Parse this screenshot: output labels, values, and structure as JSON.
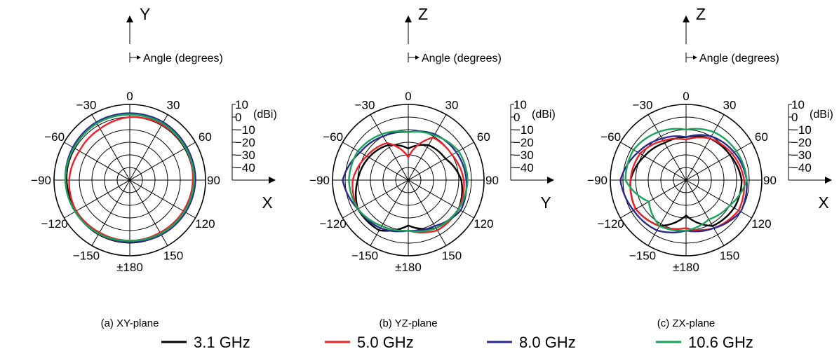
{
  "chart_data": [
    {
      "type": "polar",
      "caption": "(a) XY-plane",
      "up_axis": "Y",
      "right_axis": "X",
      "angle_note": "Angle (degrees)",
      "unit": "(dBi)",
      "angle_ticks": [
        "0",
        "30",
        "60",
        "90",
        "120",
        "150",
        "±180",
        "−150",
        "−120",
        "−90",
        "−60",
        "−30"
      ],
      "radial_ticks": [
        "10",
        "0",
        "−10",
        "−20",
        "−30",
        "−40"
      ],
      "rlim": [
        -50,
        10
      ],
      "angles_deg": [
        0,
        30,
        60,
        90,
        120,
        150,
        180,
        210,
        240,
        270,
        300,
        330
      ],
      "series": [
        {
          "name": "3.1 GHz",
          "color": "#000000",
          "gain_dbi": [
            2,
            2,
            1,
            1,
            0,
            -1,
            -2,
            -2,
            -1,
            0,
            1,
            2
          ]
        },
        {
          "name": "5.0 GHz",
          "color": "#e8232a",
          "gain_dbi": [
            0,
            1,
            1,
            0,
            -1,
            -2,
            -2,
            -2,
            -1,
            -2,
            -4,
            -3
          ]
        },
        {
          "name": "8.0 GHz",
          "color": "#2b2b8c",
          "gain_dbi": [
            3,
            3,
            2,
            2,
            1,
            0,
            -1,
            -1,
            0,
            1,
            2,
            3
          ]
        },
        {
          "name": "10.6 GHz",
          "color": "#1aa35a",
          "gain_dbi": [
            2,
            2,
            1,
            1,
            0,
            -1,
            -2,
            -1,
            0,
            1,
            1,
            2
          ]
        }
      ]
    },
    {
      "type": "polar",
      "caption": "(b) YZ-plane",
      "up_axis": "Z",
      "right_axis": "Y",
      "angle_note": "Angle (degrees)",
      "unit": "(dBi)",
      "angle_ticks": [
        "0",
        "30",
        "60",
        "90",
        "120",
        "150",
        "±180",
        "−150",
        "−120",
        "−90",
        "−60",
        "−30"
      ],
      "radial_ticks": [
        "10",
        "0",
        "−10",
        "−20",
        "−30",
        "−40"
      ],
      "rlim": [
        -50,
        10
      ],
      "angles_deg": [
        0,
        30,
        60,
        90,
        120,
        150,
        180,
        210,
        240,
        270,
        300,
        330
      ],
      "series": [
        {
          "name": "3.1 GHz",
          "color": "#000000",
          "gain_dbi": [
            -25,
            -18,
            -16,
            -8,
            -4,
            -6,
            -14,
            -4,
            -4,
            -10,
            -14,
            -18
          ]
        },
        {
          "name": "5.0 GHz",
          "color": "#e8232a",
          "gain_dbi": [
            -32,
            -11,
            -10,
            -6,
            -4,
            -4,
            -10,
            -8,
            -4,
            -6,
            -12,
            -16
          ]
        },
        {
          "name": "8.0 GHz",
          "color": "#2b2b8c",
          "gain_dbi": [
            -12,
            -8,
            -6,
            -4,
            -2,
            -8,
            -10,
            -6,
            -4,
            2,
            -6,
            -10
          ]
        },
        {
          "name": "10.6 GHz",
          "color": "#1aa35a",
          "gain_dbi": [
            -12,
            -9,
            -4,
            -3,
            -4,
            -6,
            -10,
            -8,
            -4,
            -3,
            -4,
            -8
          ]
        }
      ]
    },
    {
      "type": "polar",
      "caption": "(c) ZX-plane",
      "up_axis": "Z",
      "right_axis": "X",
      "angle_note": "Angle (degrees)",
      "unit": "(dBi)",
      "angle_ticks": [
        "0",
        "30",
        "60",
        "90",
        "120",
        "150",
        "±180",
        "−150",
        "−120",
        "−90",
        "−60",
        "−30"
      ],
      "radial_ticks": [
        "10",
        "0",
        "−10",
        "−20",
        "−30",
        "−40"
      ],
      "rlim": [
        -50,
        10
      ],
      "angles_deg": [
        0,
        30,
        60,
        90,
        120,
        150,
        180,
        210,
        240,
        270,
        300,
        330
      ],
      "series": [
        {
          "name": "3.1 GHz",
          "color": "#000000",
          "gain_dbi": [
            -16,
            -12,
            -10,
            -6,
            -6,
            -8,
            -22,
            -8,
            -4,
            -6,
            -12,
            -16
          ]
        },
        {
          "name": "5.0 GHz",
          "color": "#e8232a",
          "gain_dbi": [
            -18,
            -12,
            -8,
            -4,
            -2,
            -6,
            -12,
            -8,
            -4,
            -6,
            -8,
            -14
          ]
        },
        {
          "name": "8.0 GHz",
          "color": "#2b2b8c",
          "gain_dbi": [
            -16,
            -10,
            -6,
            -2,
            0,
            -6,
            -10,
            -4,
            -2,
            2,
            -6,
            -12
          ]
        },
        {
          "name": "10.6 GHz",
          "color": "#1aa35a",
          "gain_dbi": [
            -10,
            -6,
            -4,
            -2,
            -10,
            -14,
            -10,
            -8,
            -16,
            -2,
            -2,
            -6
          ]
        }
      ]
    }
  ],
  "legend": [
    {
      "label": "3.1 GHz",
      "color": "#000000"
    },
    {
      "label": "5.0 GHz",
      "color": "#e8232a"
    },
    {
      "label": "8.0 GHz",
      "color": "#2b2b8c"
    },
    {
      "label": "10.6 GHz",
      "color": "#1aa35a"
    }
  ]
}
